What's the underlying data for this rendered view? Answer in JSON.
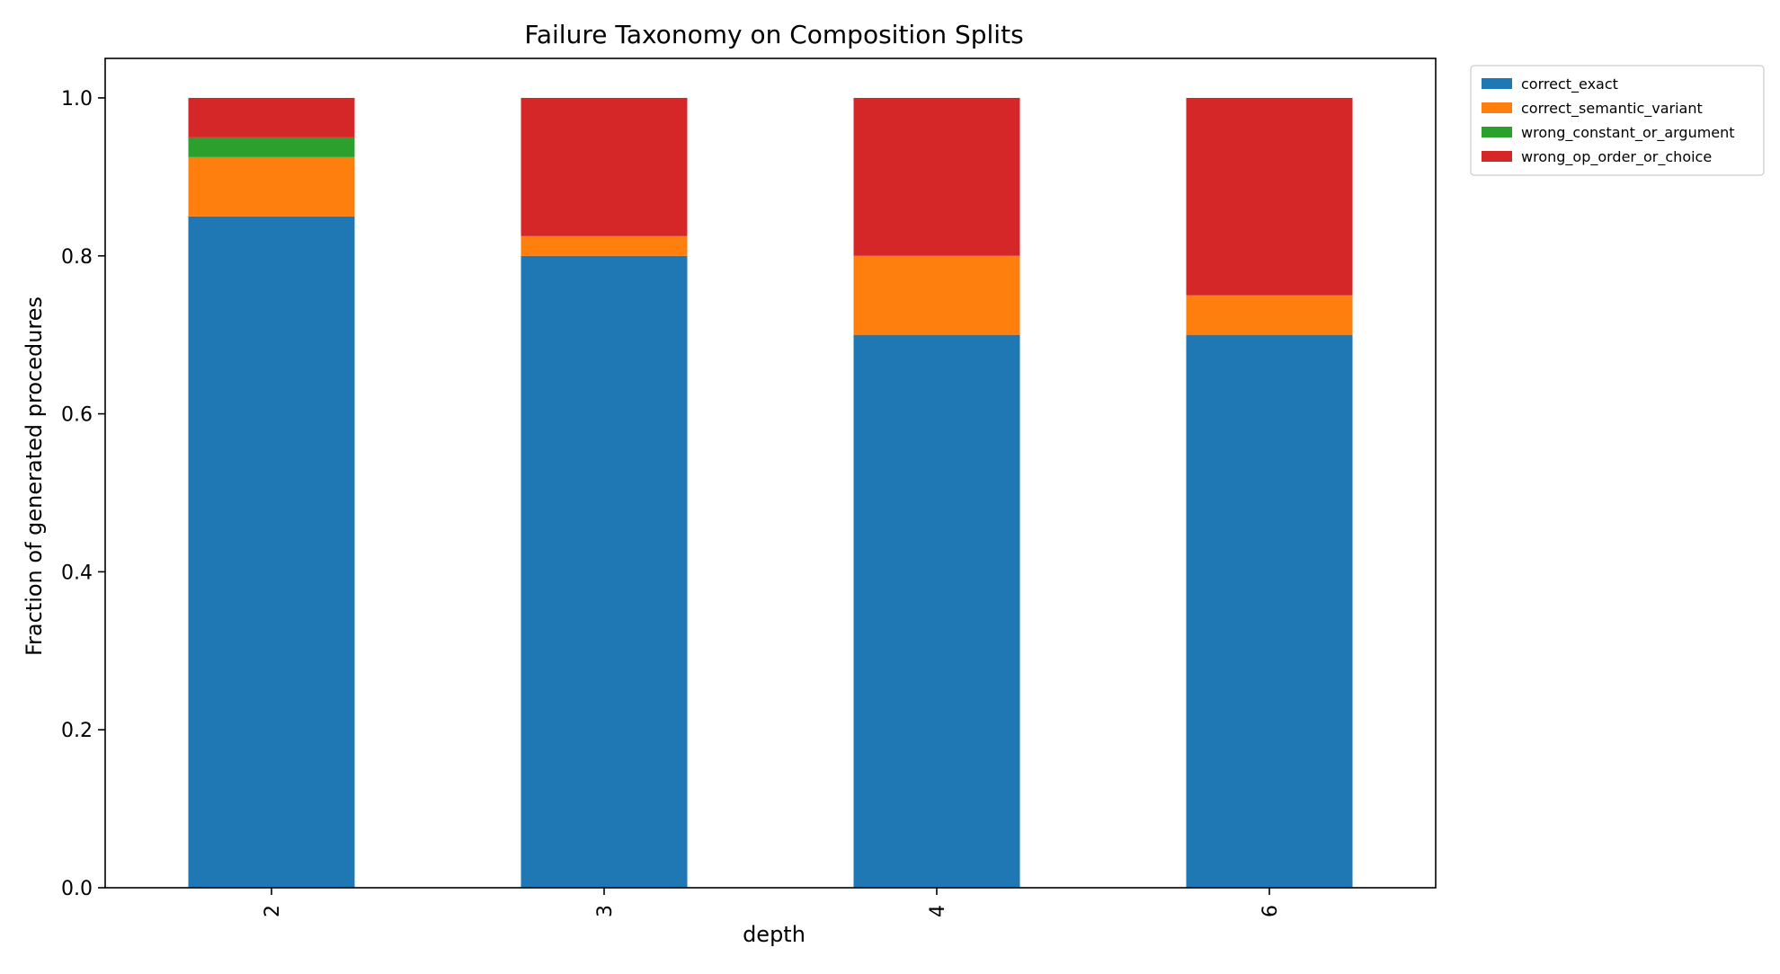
{
  "chart_data": {
    "type": "bar",
    "stacked": true,
    "title": "Failure Taxonomy on Composition Splits",
    "xlabel": "depth",
    "ylabel": "Fraction of generated procedures",
    "categories": [
      "2",
      "3",
      "4",
      "6"
    ],
    "ylim": [
      0,
      1.05
    ],
    "yticks": [
      "0.0",
      "0.2",
      "0.4",
      "0.6",
      "0.8",
      "1.0"
    ],
    "grid": false,
    "legend_placement": "outside-top-right",
    "series": [
      {
        "name": "correct_exact",
        "color": "#1f77b4",
        "values": [
          0.85,
          0.8,
          0.7,
          0.7
        ]
      },
      {
        "name": "correct_semantic_variant",
        "color": "#ff7f0e",
        "values": [
          0.075,
          0.025,
          0.1,
          0.05
        ]
      },
      {
        "name": "wrong_constant_or_argument",
        "color": "#2ca02c",
        "values": [
          0.025,
          0.0,
          0.0,
          0.0
        ]
      },
      {
        "name": "wrong_op_order_or_choice",
        "color": "#d62728",
        "values": [
          0.05,
          0.175,
          0.2,
          0.25
        ]
      }
    ]
  }
}
